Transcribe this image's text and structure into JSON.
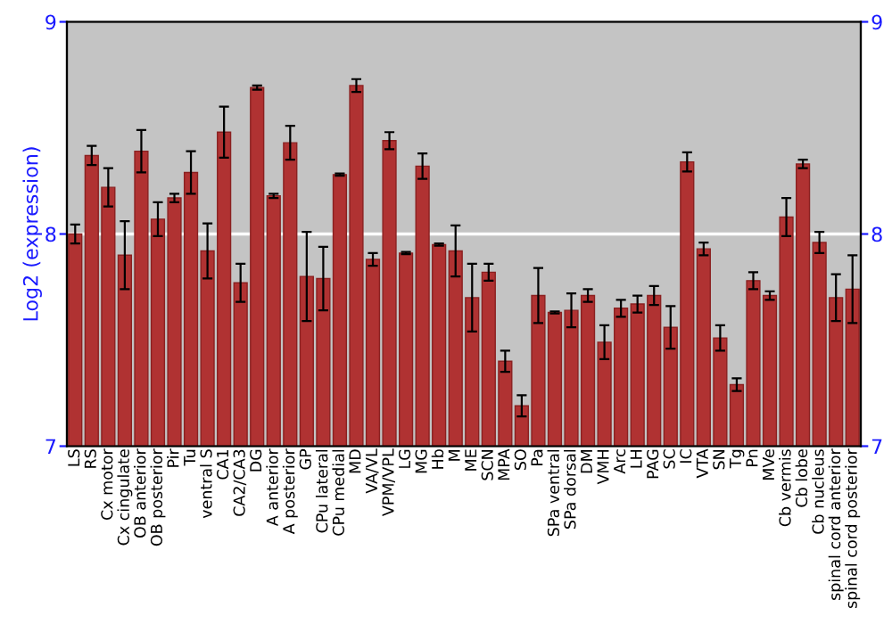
{
  "chart_data": {
    "type": "bar",
    "ylabel": "Log2 (expression)",
    "categories": [
      "LS",
      "RS",
      "Cx motor",
      "Cx cingulate",
      "OB anterior",
      "OB posterior",
      "Pir",
      "Tu",
      "ventral S",
      "CA1",
      "CA2/CA3",
      "DG",
      "A anterior",
      "A posterior",
      "GP",
      "CPu lateral",
      "CPu medial",
      "MD",
      "VA/VL",
      "VPM/VPL",
      "LG",
      "MG",
      "Hb",
      "M",
      "ME",
      "SCN",
      "MPA",
      "SO",
      "Pa",
      "SPa ventral",
      "SPa dorsal",
      "DM",
      "VMH",
      "Arc",
      "LH",
      "PAG",
      "SC",
      "IC",
      "VTA",
      "SN",
      "Tg",
      "Pn",
      "MVe",
      "Cb vermis",
      "Cb lobe",
      "Cb nucleus",
      "spinal cord anterior",
      "spinal cord posterior"
    ],
    "values": [
      8.0,
      8.37,
      8.22,
      7.9,
      8.39,
      8.07,
      8.17,
      8.29,
      7.92,
      8.48,
      7.77,
      8.69,
      8.18,
      8.43,
      7.8,
      7.79,
      8.28,
      8.7,
      7.88,
      8.44,
      7.91,
      8.32,
      7.95,
      7.92,
      7.7,
      7.82,
      7.4,
      7.19,
      7.71,
      7.63,
      7.64,
      7.71,
      7.49,
      7.65,
      7.67,
      7.71,
      7.56,
      8.34,
      7.93,
      7.51,
      7.29,
      7.78,
      7.71,
      8.08,
      8.33,
      7.96,
      7.7,
      7.74
    ],
    "errors": [
      0.045,
      0.045,
      0.09,
      0.16,
      0.1,
      0.08,
      0.02,
      0.1,
      0.13,
      0.12,
      0.09,
      0.01,
      0.01,
      0.08,
      0.21,
      0.15,
      0.005,
      0.03,
      0.03,
      0.04,
      0.005,
      0.06,
      0.005,
      0.12,
      0.16,
      0.04,
      0.05,
      0.05,
      0.13,
      0.005,
      0.08,
      0.03,
      0.08,
      0.04,
      0.04,
      0.045,
      0.1,
      0.045,
      0.03,
      0.06,
      0.03,
      0.04,
      0.02,
      0.09,
      0.02,
      0.05,
      0.11,
      0.16
    ],
    "color": "#b03232",
    "ylim": [
      7,
      9
    ],
    "yticks": [
      7,
      8,
      9
    ],
    "y2lim": [
      7,
      9
    ],
    "y2ticks": [
      7,
      8,
      9
    ],
    "ref_lines": [
      {
        "axis": "y",
        "value": 8,
        "color": "#ffffff"
      }
    ]
  }
}
